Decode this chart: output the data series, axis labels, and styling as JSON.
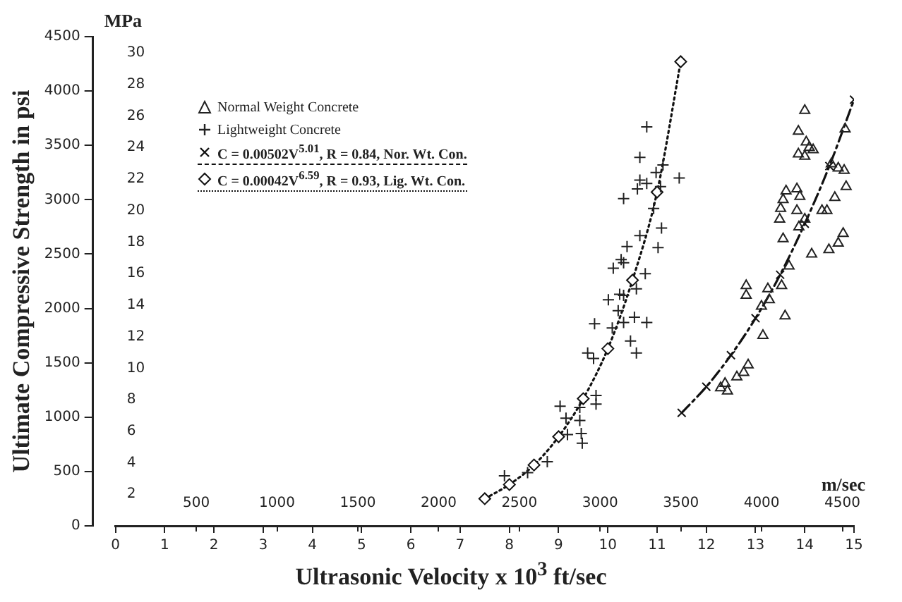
{
  "chart_data": {
    "type": "scatter",
    "xlabel": "Ultrasonic Velocity x 10$^{3}$ ft/sec",
    "ylabel": "Ultimate Compressive Strength in psi",
    "y2label": "MPa",
    "x2label": "m/sec",
    "xlim": [
      0,
      15
    ],
    "xticks": [
      0,
      1,
      2,
      3,
      4,
      5,
      6,
      7,
      8,
      9,
      10,
      11,
      12,
      13,
      14,
      15
    ],
    "ylim": [
      0,
      4500
    ],
    "yticks": [
      0,
      500,
      1000,
      1500,
      2000,
      2500,
      3000,
      3500,
      4000,
      4500
    ],
    "x2lim": [
      0,
      4572
    ],
    "x2ticks": [
      500,
      1000,
      1500,
      2000,
      2500,
      3000,
      3500,
      4000,
      4500
    ],
    "y2lim": [
      0,
      31.03
    ],
    "y2ticks": [
      2,
      4,
      6,
      8,
      10,
      12,
      14,
      16,
      18,
      20,
      22,
      24,
      26,
      28,
      30
    ],
    "grid": false,
    "legend": "top left",
    "series": [
      {
        "name": "Normal Weight Concrete",
        "color": "#222222",
        "marker": "triangle",
        "x": [
          14.0,
          13.87,
          14.03,
          14.09,
          13.87,
          14.0,
          14.17,
          14.54,
          14.68,
          14.8,
          14.84,
          14.61,
          14.45,
          14.35,
          13.62,
          13.84,
          13.9,
          13.56,
          13.51,
          13.49,
          13.84,
          14.0,
          13.88,
          13.56,
          14.14,
          14.49,
          14.68,
          14.78,
          13.68,
          13.53,
          12.81,
          12.81,
          13.25,
          13.28,
          13.12,
          13.6,
          13.15,
          12.85,
          12.76,
          12.62,
          12.38,
          12.29,
          12.43,
          14.82
        ],
        "values": [
          3820,
          3630,
          3530,
          3480,
          3420,
          3400,
          3460,
          3330,
          3290,
          3270,
          3120,
          3020,
          2900,
          2900,
          3080,
          3100,
          3030,
          3000,
          2920,
          2820,
          2900,
          2820,
          2750,
          2640,
          2500,
          2540,
          2600,
          2690,
          2390,
          2210,
          2210,
          2120,
          2180,
          2080,
          2020,
          1930,
          1750,
          1480,
          1410,
          1370,
          1310,
          1270,
          1240,
          3650
        ]
      },
      {
        "name": "Lightweight Concrete",
        "color": "#222222",
        "marker": "plus",
        "x": [
          7.9,
          8.37,
          8.77,
          9.03,
          9.15,
          9.43,
          9.18,
          9.43,
          9.46,
          9.48,
          9.76,
          9.76,
          9.59,
          9.71,
          9.73,
          10.09,
          10.01,
          10.21,
          10.24,
          10.32,
          10.54,
          10.79,
          10.46,
          10.58,
          10.32,
          10.11,
          10.27,
          10.39,
          10.32,
          10.76,
          10.58,
          10.65,
          11.09,
          11.02,
          10.93,
          11.07,
          10.32,
          10.6,
          10.65,
          10.79,
          10.98,
          11.12,
          11.45,
          10.65,
          10.79
        ],
        "values": [
          460,
          490,
          590,
          1100,
          990,
          1090,
          840,
          970,
          850,
          760,
          1200,
          1120,
          1590,
          1540,
          1860,
          1820,
          2080,
          1980,
          2130,
          1870,
          1920,
          1870,
          1700,
          1590,
          2120,
          2370,
          2450,
          2570,
          2420,
          2320,
          2180,
          2670,
          2740,
          2560,
          2920,
          3120,
          3010,
          3100,
          3180,
          3150,
          3250,
          3320,
          3200,
          3390,
          3670
        ]
      },
      {
        "name": "C = 0.00502V$^{5.01}$, R = 0.84, Nor. Wt. Con.",
        "type": "line",
        "color": "#111111",
        "marker": "cross",
        "line_style": "dashed",
        "x": [
          11.5,
          12,
          12.5,
          13,
          13.5,
          14,
          14.5,
          15
        ],
        "values": [
          1040,
          1280,
          1570,
          1910,
          2310,
          2780,
          3310,
          3920
        ]
      },
      {
        "name": "C = 0.00042V$^{6.59}$, R = 0.93, Lig. Wt. Con.",
        "type": "line",
        "color": "#111111",
        "marker": "diamond",
        "line_style": "dotted",
        "x": [
          7.5,
          8,
          8.5,
          9,
          9.5,
          10,
          10.5,
          11,
          11.48
        ],
        "values": [
          250,
          380,
          560,
          820,
          1170,
          1630,
          2260,
          3070,
          4270
        ]
      }
    ]
  }
}
